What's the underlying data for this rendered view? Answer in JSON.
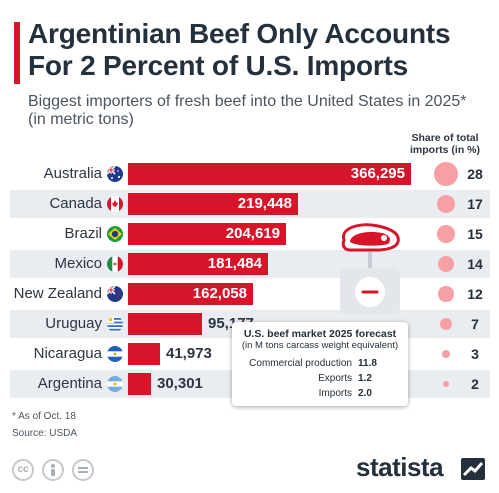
{
  "title": "Argentinian Beef Only Accounts For 2 Percent of U.S. Imports",
  "subtitle": "Biggest importers of fresh beef into the United States in 2025* (in metric tons)",
  "share_header": "Share of total imports (in %)",
  "chart_data": {
    "type": "bar",
    "orientation": "horizontal",
    "categories": [
      "Australia",
      "Canada",
      "Brazil",
      "Mexico",
      "New Zealand",
      "Uruguay",
      "Nicaragua",
      "Argentina"
    ],
    "values": [
      366295,
      219448,
      204619,
      181484,
      162058,
      95177,
      41973,
      30301
    ],
    "value_labels": [
      "366,295",
      "219,448",
      "204,619",
      "181,484",
      "162,058",
      "95,177",
      "41,973",
      "30,301"
    ],
    "share_values": [
      28,
      17,
      15,
      14,
      12,
      7,
      3,
      2
    ],
    "share_labels": [
      "28",
      "17",
      "15",
      "14",
      "12",
      "7",
      "3",
      "2"
    ],
    "flags": [
      "australia-flag",
      "canada-flag",
      "brazil-flag",
      "mexico-flag",
      "new-zealand-flag",
      "uruguay-flag",
      "nicaragua-flag",
      "argentina-flag"
    ],
    "bar_color": "#d7152a",
    "bubble_color": "#f6a0a6"
  },
  "forecast_box": {
    "title": "U.S. beef market 2025 forecast",
    "subtitle": "(in M tons carcass weight equivalent)",
    "rows": [
      {
        "label": "Commercial production",
        "value": "11.8"
      },
      {
        "label": "Exports",
        "value": "1.2"
      },
      {
        "label": "Imports",
        "value": "2.0"
      }
    ]
  },
  "footnote": "* As of Oct. 18",
  "source": "Source: USDA",
  "brand": "statista",
  "license_icons": [
    "cc-icon",
    "by-icon",
    "nd-icon"
  ]
}
